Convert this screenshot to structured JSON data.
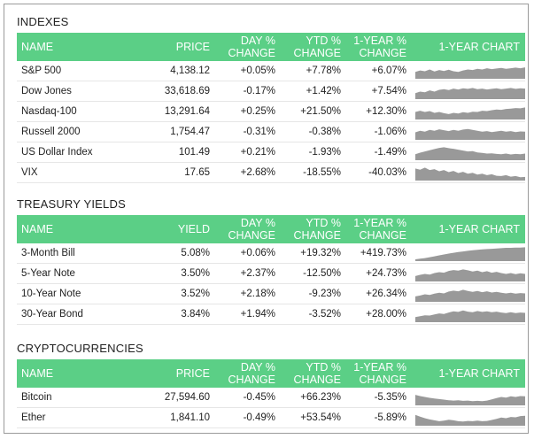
{
  "headers_std": {
    "name": "NAME",
    "price": "PRICE",
    "day": [
      "DAY %",
      "CHANGE"
    ],
    "ytd": [
      "YTD %",
      "CHANGE"
    ],
    "year": [
      "1-YEAR %",
      "CHANGE"
    ],
    "chart": "1-YEAR CHART"
  },
  "headers_yield": {
    "name": "NAME",
    "price": "YIELD",
    "day": [
      "DAY %",
      "CHANGE"
    ],
    "ytd": [
      "YTD %",
      "CHANGE"
    ],
    "year": [
      "1-YEAR %",
      "CHANGE"
    ],
    "chart": "1-YEAR CHART"
  },
  "sections": [
    {
      "title": "INDEXES",
      "rows": [
        {
          "name": "S&P 500",
          "price": "4,138.12",
          "day": "+0.05%",
          "ytd": "+7.78%",
          "year": "+6.07%",
          "spark": [
            0.45,
            0.55,
            0.5,
            0.62,
            0.48,
            0.58,
            0.52,
            0.6,
            0.5,
            0.45,
            0.55,
            0.62,
            0.58,
            0.66,
            0.62,
            0.7,
            0.64,
            0.68,
            0.72,
            0.66,
            0.7,
            0.74,
            0.7,
            0.76
          ]
        },
        {
          "name": "Dow Jones",
          "price": "33,618.69",
          "day": "-0.17%",
          "ytd": "+1.42%",
          "year": "+7.54%",
          "spark": [
            0.4,
            0.5,
            0.46,
            0.58,
            0.5,
            0.62,
            0.66,
            0.6,
            0.7,
            0.64,
            0.72,
            0.68,
            0.74,
            0.66,
            0.7,
            0.64,
            0.68,
            0.72,
            0.66,
            0.7,
            0.74,
            0.68,
            0.72,
            0.7
          ]
        },
        {
          "name": "Nasdaq-100",
          "price": "13,291.64",
          "day": "+0.25%",
          "ytd": "+21.50%",
          "year": "+12.30%",
          "spark": [
            0.5,
            0.58,
            0.5,
            0.56,
            0.44,
            0.5,
            0.42,
            0.36,
            0.44,
            0.4,
            0.48,
            0.44,
            0.52,
            0.5,
            0.58,
            0.56,
            0.62,
            0.66,
            0.64,
            0.7,
            0.72,
            0.76,
            0.74,
            0.8
          ]
        },
        {
          "name": "Russell 2000",
          "price": "1,754.47",
          "day": "-0.31%",
          "ytd": "-0.38%",
          "year": "-1.06%",
          "spark": [
            0.5,
            0.6,
            0.54,
            0.66,
            0.6,
            0.7,
            0.64,
            0.58,
            0.66,
            0.6,
            0.68,
            0.72,
            0.66,
            0.6,
            0.54,
            0.58,
            0.52,
            0.56,
            0.6,
            0.54,
            0.58,
            0.52,
            0.56,
            0.54
          ]
        },
        {
          "name": "US Dollar Index",
          "price": "101.49",
          "day": "+0.21%",
          "ytd": "-1.93%",
          "year": "-1.49%",
          "spark": [
            0.4,
            0.5,
            0.58,
            0.66,
            0.74,
            0.82,
            0.86,
            0.8,
            0.76,
            0.7,
            0.64,
            0.58,
            0.6,
            0.52,
            0.48,
            0.44,
            0.46,
            0.42,
            0.4,
            0.44,
            0.38,
            0.42,
            0.4,
            0.44
          ]
        },
        {
          "name": "VIX",
          "price": "17.65",
          "day": "+2.68%",
          "ytd": "-18.55%",
          "year": "-40.03%",
          "spark": [
            0.8,
            0.72,
            0.86,
            0.7,
            0.76,
            0.62,
            0.7,
            0.56,
            0.64,
            0.5,
            0.58,
            0.46,
            0.52,
            0.4,
            0.46,
            0.36,
            0.42,
            0.32,
            0.3,
            0.36,
            0.26,
            0.3,
            0.22,
            0.24
          ]
        }
      ]
    },
    {
      "title": "TREASURY YIELDS",
      "rows": [
        {
          "name": "3-Month Bill",
          "price": "5.08%",
          "day": "+0.06%",
          "ytd": "+19.32%",
          "year": "+419.73%",
          "spark": [
            0.12,
            0.16,
            0.2,
            0.26,
            0.32,
            0.38,
            0.44,
            0.5,
            0.55,
            0.6,
            0.64,
            0.68,
            0.72,
            0.75,
            0.78,
            0.8,
            0.82,
            0.84,
            0.86,
            0.88,
            0.88,
            0.9,
            0.9,
            0.92
          ]
        },
        {
          "name": "5-Year Note",
          "price": "3.50%",
          "day": "+2.37%",
          "ytd": "-12.50%",
          "year": "+24.73%",
          "spark": [
            0.36,
            0.44,
            0.5,
            0.46,
            0.56,
            0.62,
            0.58,
            0.7,
            0.76,
            0.72,
            0.8,
            0.74,
            0.66,
            0.72,
            0.62,
            0.68,
            0.58,
            0.64,
            0.56,
            0.5,
            0.56,
            0.48,
            0.54,
            0.5
          ]
        },
        {
          "name": "10-Year Note",
          "price": "3.52%",
          "day": "+2.18%",
          "ytd": "-9.23%",
          "year": "+26.34%",
          "spark": [
            0.36,
            0.42,
            0.5,
            0.46,
            0.54,
            0.6,
            0.56,
            0.68,
            0.74,
            0.7,
            0.8,
            0.72,
            0.66,
            0.72,
            0.64,
            0.7,
            0.62,
            0.66,
            0.6,
            0.56,
            0.6,
            0.54,
            0.58,
            0.56
          ]
        },
        {
          "name": "30-Year Bond",
          "price": "3.84%",
          "day": "+1.94%",
          "ytd": "-3.52%",
          "year": "+28.00%",
          "spark": [
            0.34,
            0.4,
            0.46,
            0.44,
            0.52,
            0.58,
            0.54,
            0.64,
            0.72,
            0.68,
            0.78,
            0.7,
            0.66,
            0.74,
            0.68,
            0.72,
            0.66,
            0.7,
            0.64,
            0.6,
            0.66,
            0.6,
            0.64,
            0.62
          ]
        }
      ]
    },
    {
      "title": "CRYPTOCURRENCIES",
      "rows": [
        {
          "name": "Bitcoin",
          "price": "27,594.60",
          "day": "-0.45%",
          "ytd": "+66.23%",
          "year": "-5.35%",
          "spark": [
            0.7,
            0.62,
            0.56,
            0.5,
            0.46,
            0.42,
            0.38,
            0.34,
            0.32,
            0.34,
            0.3,
            0.32,
            0.28,
            0.3,
            0.28,
            0.32,
            0.4,
            0.48,
            0.56,
            0.52,
            0.6,
            0.56,
            0.62,
            0.6
          ]
        },
        {
          "name": "Ether",
          "price": "1,841.10",
          "day": "-0.49%",
          "ytd": "+53.54%",
          "year": "-5.89%",
          "spark": [
            0.72,
            0.6,
            0.5,
            0.42,
            0.36,
            0.3,
            0.34,
            0.4,
            0.36,
            0.3,
            0.28,
            0.32,
            0.3,
            0.34,
            0.3,
            0.32,
            0.38,
            0.46,
            0.54,
            0.5,
            0.58,
            0.56,
            0.64,
            0.66
          ]
        }
      ]
    }
  ]
}
